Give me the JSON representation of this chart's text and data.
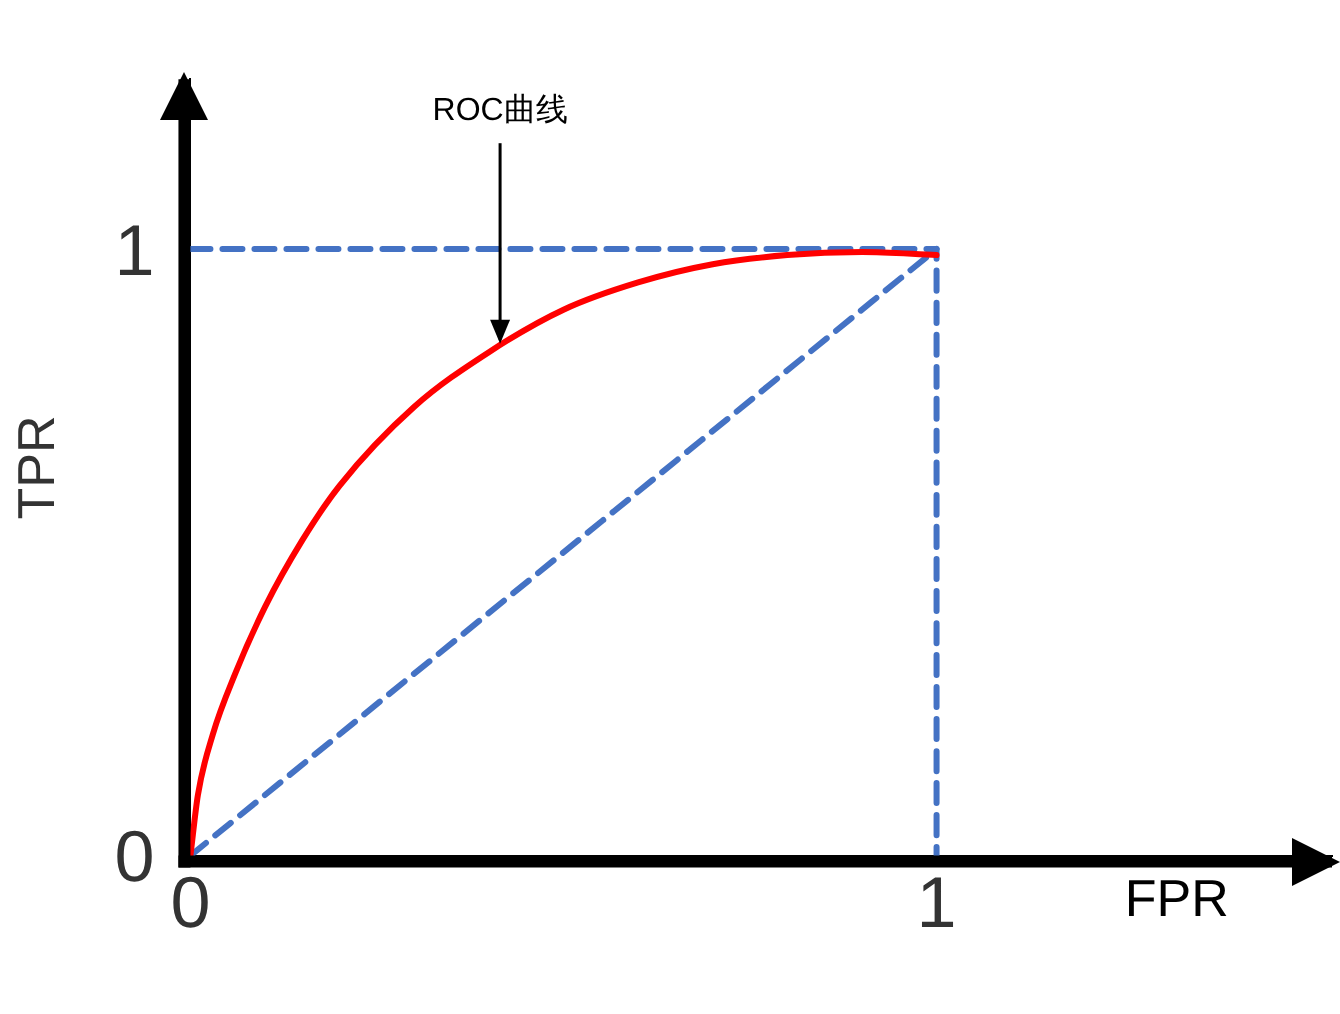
{
  "chart_data": {
    "type": "line",
    "xlabel": "FPR",
    "ylabel": "TPR",
    "xlim": [
      0,
      1.53
    ],
    "ylim": [
      0,
      1.28
    ],
    "xticks": [
      0,
      1
    ],
    "yticks": [
      0,
      1
    ],
    "grid": false,
    "legend": false,
    "marker": "none",
    "annotations": [
      {
        "text": "ROC曲线",
        "x": 0.415,
        "y": 0.844
      }
    ],
    "series": [
      {
        "type": "line",
        "color": "#ff0000",
        "line_style": "solid",
        "x": [
          0,
          0.01,
          0.03,
          0.06,
          0.1,
          0.15,
          0.2,
          0.3,
          0.4,
          0.5,
          0.6,
          0.7,
          0.8,
          0.9,
          1
        ],
        "values": [
          0,
          0.1,
          0.2,
          0.3,
          0.41,
          0.52,
          0.61,
          0.74,
          0.83,
          0.9,
          0.945,
          0.975,
          0.99,
          0.995,
          0.99
        ]
      },
      {
        "type": "line",
        "color": "#4472c4",
        "line_style": "dashed",
        "x": [
          0,
          1
        ],
        "values": [
          0,
          1
        ]
      },
      {
        "type": "line",
        "color": "#4472c4",
        "line_style": "dashed",
        "x": [
          0,
          1,
          1
        ],
        "values": [
          1,
          1,
          0
        ]
      }
    ]
  }
}
